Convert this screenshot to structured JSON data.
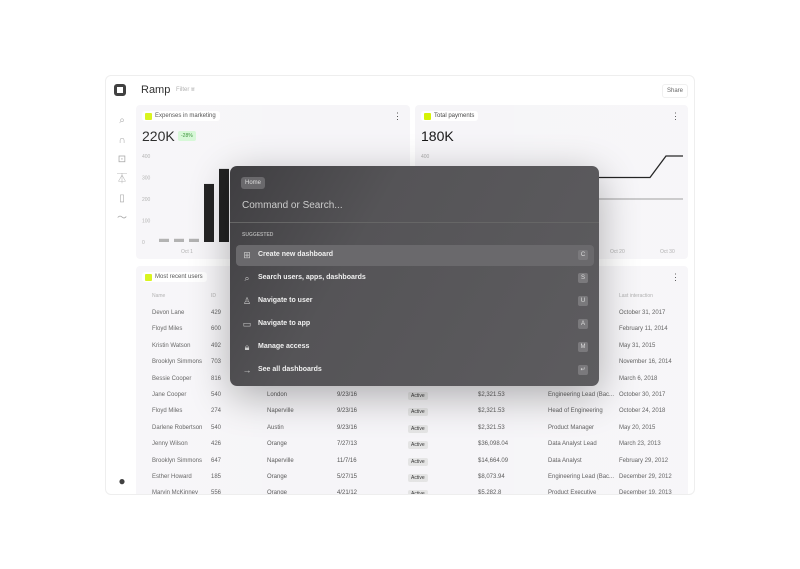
{
  "app": {
    "title": "Ramp",
    "filter_label": "Filter",
    "share_label": "Share"
  },
  "sidebar": {
    "items": [
      {
        "icon": "search-icon"
      },
      {
        "icon": "arch-icon"
      },
      {
        "icon": "plus-square-icon"
      },
      {
        "icon": "org-icon"
      },
      {
        "icon": "phone-icon"
      },
      {
        "icon": "trend-icon"
      }
    ],
    "user_icon": "user-icon"
  },
  "cards": {
    "expenses": {
      "label": "Expenses in marketing",
      "value": "220K",
      "delta": "-28%",
      "accent": "#d4f200"
    },
    "payments": {
      "label": "Total payments",
      "value": "180K"
    },
    "users": {
      "label": "Most recent users"
    }
  },
  "chart_data": [
    {
      "type": "bar",
      "ylim": [
        0,
        400
      ],
      "yticks": [
        "400",
        "300",
        "200",
        "100",
        "0"
      ],
      "xticks": [
        "Oct 1"
      ],
      "values": [
        15,
        15,
        15,
        270,
        340
      ],
      "colors": [
        "#aaaaaa",
        "#aaaaaa",
        "#aaaaaa",
        "#111111",
        "#111111"
      ]
    },
    {
      "type": "line",
      "ylim": [
        0,
        400
      ],
      "yticks": [
        "400"
      ],
      "xticks": [
        "Oct 20",
        "Oct 30"
      ],
      "series": [
        {
          "values": [
            300,
            300,
            300,
            400,
            400
          ],
          "color": "#111111"
        },
        {
          "values": [
            200,
            200,
            200,
            200,
            200
          ],
          "color": "#aaaaaa"
        }
      ]
    }
  ],
  "table": {
    "headers": [
      "Name",
      "ID",
      "",
      "",
      "",
      "",
      "",
      "Last interaction"
    ],
    "rows": [
      [
        "Devon Lane",
        "429",
        "",
        "",
        "",
        "",
        "",
        "October 31, 2017"
      ],
      [
        "Floyd Miles",
        "600",
        "",
        "",
        "",
        "",
        "",
        "February 11, 2014"
      ],
      [
        "Kristin Watson",
        "492",
        "",
        "",
        "",
        "",
        "",
        "May 31, 2015"
      ],
      [
        "Brooklyn Simmons",
        "703",
        "",
        "",
        "",
        "",
        "",
        "November 16, 2014"
      ],
      [
        "Bessie Cooper",
        "816",
        "",
        "",
        "",
        "",
        "",
        "March 6, 2018"
      ],
      [
        "Jane Cooper",
        "540",
        "London",
        "9/23/16",
        "Active",
        "$2,321.53",
        "Engineering Lead (Bac...",
        "October 30, 2017"
      ],
      [
        "Floyd Miles",
        "274",
        "Naperville",
        "9/23/16",
        "Active",
        "$2,321.53",
        "Head of Engineering",
        "October 24, 2018"
      ],
      [
        "Darlene Robertson",
        "540",
        "Austin",
        "9/23/16",
        "Active",
        "$2,321.53",
        "Product Manager",
        "May 20, 2015"
      ],
      [
        "Jenny Wilson",
        "426",
        "Orange",
        "7/27/13",
        "Active",
        "$36,098.04",
        "Data Analyst Lead",
        "March 23, 2013"
      ],
      [
        "Brooklyn Simmons",
        "647",
        "Naperville",
        "11/7/16",
        "Active",
        "$14,664.09",
        "Data Analyst",
        "February 29, 2012"
      ],
      [
        "Esther Howard",
        "185",
        "Orange",
        "5/27/15",
        "Active",
        "$8,073.94",
        "Engineering Lead (Bac...",
        "December 29, 2012"
      ],
      [
        "Marvin McKinney",
        "556",
        "Orange",
        "4/21/12",
        "Active",
        "$5,282.8",
        "Product Executive",
        "December 19, 2013"
      ]
    ]
  },
  "palette": {
    "modal": {
      "placeholder": "Command or Search...",
      "breadcrumb": "Home",
      "section": "SUGGESTED",
      "items": [
        {
          "label": "Create new dashboard",
          "key": "C",
          "icon": "plus-square-icon"
        },
        {
          "label": "Search users, apps, dashboards",
          "key": "S",
          "icon": "search-icon"
        },
        {
          "label": "Navigate to user",
          "key": "U",
          "icon": "user-icon"
        },
        {
          "label": "Navigate to app",
          "key": "A",
          "icon": "card-icon"
        },
        {
          "label": "Manage access",
          "key": "M",
          "icon": "lock-icon"
        },
        {
          "label": "See all dashboards",
          "key": "↵",
          "icon": "arrow-right-icon"
        }
      ]
    }
  }
}
